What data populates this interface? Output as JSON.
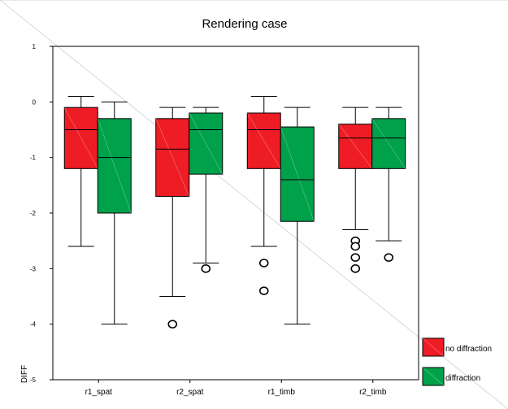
{
  "chart_data": {
    "type": "boxplot",
    "title": "Rendering case",
    "xlabel": "",
    "ylabel": "DIFF",
    "ylim": [
      -5,
      1
    ],
    "yticks": [
      "1",
      "0",
      "-1",
      "-2",
      "-3",
      "-4",
      "-5"
    ],
    "categories": [
      "r1_spat",
      "r2_spat",
      "r1_timb",
      "r2_timb"
    ],
    "legend_position": "bottom-right",
    "series": [
      {
        "name": "no diffraction",
        "color": "#ee1c24",
        "boxes": [
          {
            "whisker_low": -2.6,
            "q1": -1.2,
            "median": -0.5,
            "q3": -0.1,
            "whisker_high": 0.1,
            "outliers": []
          },
          {
            "whisker_low": -3.5,
            "q1": -1.7,
            "median": -0.85,
            "q3": -0.3,
            "whisker_high": -0.1,
            "outliers": [
              -4.0
            ]
          },
          {
            "whisker_low": -2.6,
            "q1": -1.2,
            "median": -0.5,
            "q3": -0.2,
            "whisker_high": 0.1,
            "outliers": [
              -2.9,
              -3.4
            ]
          },
          {
            "whisker_low": -2.3,
            "q1": -1.2,
            "median": -0.65,
            "q3": -0.4,
            "whisker_high": -0.1,
            "outliers": [
              -2.5,
              -2.6,
              -2.8,
              -3.0
            ]
          }
        ]
      },
      {
        "name": "diffraction",
        "color": "#00a14b",
        "boxes": [
          {
            "whisker_low": -4.0,
            "q1": -2.0,
            "median": -1.0,
            "q3": -0.3,
            "whisker_high": 0.0,
            "outliers": []
          },
          {
            "whisker_low": -2.9,
            "q1": -1.3,
            "median": -0.5,
            "q3": -0.2,
            "whisker_high": -0.1,
            "outliers": [
              -3.0
            ]
          },
          {
            "whisker_low": -4.0,
            "q1": -2.15,
            "median": -1.4,
            "q3": -0.45,
            "whisker_high": -0.1,
            "outliers": []
          },
          {
            "whisker_low": -2.5,
            "q1": -1.2,
            "median": -0.65,
            "q3": -0.3,
            "whisker_high": -0.1,
            "outliers": [
              -2.8
            ]
          }
        ]
      }
    ]
  }
}
